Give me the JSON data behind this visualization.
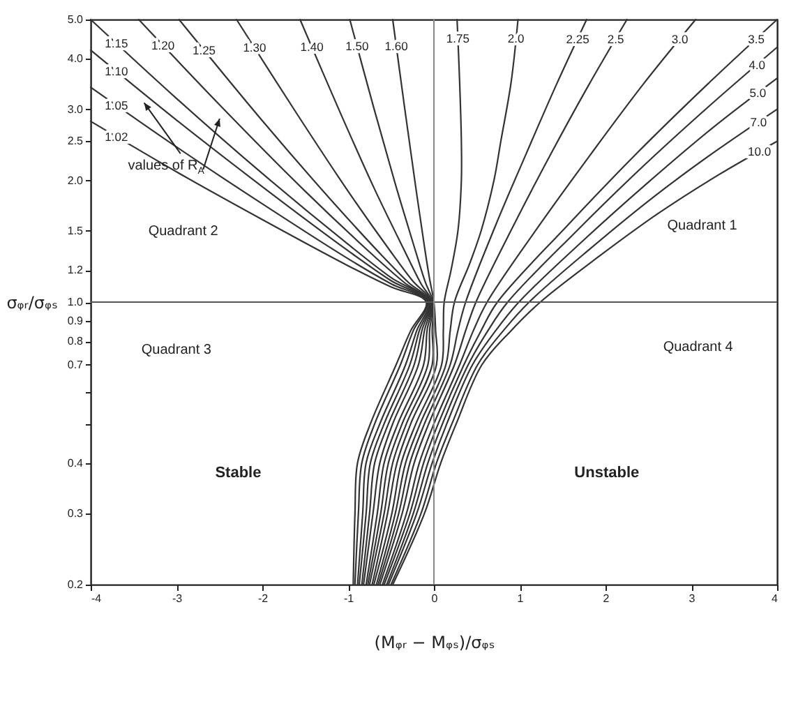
{
  "chart_data": {
    "type": "line",
    "xlabel": "(Mᵩᵣ − Mᵩₛ)/σᵩₛ",
    "ylabel": "σᵩᵣ/σᵩₛ",
    "log": "y",
    "xlim": [
      -4,
      4
    ],
    "xticks": [
      -4,
      -3,
      -2,
      -1,
      0,
      1,
      2,
      3,
      4
    ],
    "ylim": [
      0.2,
      5
    ],
    "yticks": [
      0.2,
      0.3,
      0.4,
      {
        "value": 0.5,
        "label": null
      },
      {
        "value": 0.6,
        "label": null
      },
      0.7,
      0.8,
      0.9,
      {
        "value": 1,
        "label": "1.0"
      },
      1.2,
      1.5,
      {
        "value": 2,
        "label": "2.0"
      },
      2.5,
      {
        "value": 3,
        "label": "3.0"
      },
      {
        "value": 4,
        "label": "4.0"
      },
      {
        "value": 5,
        "label": "5.0"
      }
    ],
    "grid": false,
    "legend": false,
    "marker": "none",
    "line_style": "solid",
    "ref_lines": [
      {
        "axis": "y",
        "value": 1,
        "color": "#555555"
      },
      {
        "axis": "x",
        "value": 0,
        "color": "#888888"
      }
    ],
    "annotations": [
      "Quadrant 2",
      "Quadrant 1",
      "Quadrant 3",
      "Quadrant 4",
      "Stable",
      "Unstable",
      "values of R$_{A}$"
    ],
    "series": [
      {
        "name": "1.02",
        "color": "#333333",
        "x": [
          -4,
          -3,
          -2,
          -1,
          -0.5,
          -0.09,
          -0.27,
          -0.44,
          -0.74,
          -0.89,
          -0.92,
          -0.94
        ],
        "values": [
          2.8,
          2.1,
          1.6,
          1.23,
          1.09,
          1,
          0.85,
          0.7,
          0.5,
          0.4,
          0.3,
          0.2
        ]
      },
      {
        "name": "1.05",
        "color": "#333333",
        "x": [
          -4,
          -3,
          -2,
          -1,
          -0.5,
          -0.08,
          -0.24,
          -0.39,
          -0.69,
          -0.84,
          -0.88,
          -0.92
        ],
        "values": [
          3.4,
          2.42,
          1.75,
          1.28,
          1.11,
          1,
          0.85,
          0.7,
          0.5,
          0.4,
          0.3,
          0.2
        ]
      },
      {
        "name": "1.10",
        "color": "#333333",
        "x": [
          -4,
          -3,
          -2,
          -1,
          -0.5,
          -0.07,
          -0.2,
          -0.33,
          -0.63,
          -0.79,
          -0.83,
          -0.89
        ],
        "values": [
          4.2,
          2.82,
          1.93,
          1.34,
          1.13,
          1,
          0.85,
          0.7,
          0.5,
          0.4,
          0.3,
          0.2
        ]
      },
      {
        "name": "1.15",
        "color": "#333333",
        "x": [
          -4,
          -3,
          -2,
          -1,
          -0.5,
          -0.06,
          -0.17,
          -0.28,
          -0.58,
          -0.74,
          -0.79,
          -0.87
        ],
        "values": [
          5,
          3.19,
          2.08,
          1.39,
          1.15,
          1,
          0.85,
          0.7,
          0.5,
          0.4,
          0.3,
          0.2
        ]
      },
      {
        "name": "1.20",
        "color": "#333333",
        "x": [
          -3.44,
          -2.5,
          -1.5,
          -0.75,
          -0.35,
          -0.05,
          -0.14,
          -0.23,
          -0.53,
          -0.69,
          -0.75,
          -0.84
        ],
        "values": [
          5,
          3.08,
          1.88,
          1.33,
          1.12,
          1,
          0.85,
          0.7,
          0.5,
          0.4,
          0.3,
          0.2
        ]
      },
      {
        "name": "1.25",
        "color": "#333333",
        "x": [
          -2.97,
          -2,
          -1.2,
          -0.6,
          -0.3,
          -0.04,
          -0.11,
          -0.18,
          -0.48,
          -0.63,
          -0.71,
          -0.82
        ],
        "values": [
          5,
          2.81,
          1.79,
          1.3,
          1.12,
          1,
          0.85,
          0.7,
          0.5,
          0.4,
          0.3,
          0.2
        ]
      },
      {
        "name": "1.30",
        "color": "#333333",
        "x": [
          -2.3,
          -1.6,
          -1,
          -0.5,
          -0.25,
          -0.03,
          -0.08,
          -0.12,
          -0.42,
          -0.58,
          -0.66,
          -0.79
        ],
        "values": [
          5,
          2.93,
          1.88,
          1.33,
          1.13,
          1,
          0.85,
          0.7,
          0.5,
          0.4,
          0.3,
          0.2
        ]
      },
      {
        "name": "1.40",
        "color": "#333333",
        "x": [
          -1.56,
          -1.1,
          -0.7,
          -0.35,
          -0.15,
          -0.02,
          -0.05,
          -0.07,
          -0.37,
          -0.53,
          -0.62,
          -0.77
        ],
        "values": [
          5,
          2.97,
          1.92,
          1.35,
          1.11,
          1,
          0.85,
          0.7,
          0.5,
          0.4,
          0.3,
          0.2
        ]
      },
      {
        "name": "1.50",
        "color": "#333333",
        "x": [
          -0.98,
          -0.7,
          -0.45,
          -0.22,
          -0.1,
          -0.01,
          -0.02,
          -0.02,
          -0.32,
          -0.48,
          -0.58,
          -0.75
        ],
        "values": [
          5,
          3.02,
          1.96,
          1.35,
          1.12,
          1,
          0.85,
          0.7,
          0.5,
          0.4,
          0.3,
          0.2
        ]
      },
      {
        "name": "1.60",
        "color": "#333333",
        "x": [
          -0.48,
          -0.34,
          -0.22,
          -0.11,
          -0.05,
          0,
          0.02,
          0.03,
          -0.27,
          -0.43,
          -0.54,
          -0.72
        ],
        "values": [
          5,
          3.01,
          1.98,
          1.37,
          1.14,
          1,
          0.85,
          0.7,
          0.5,
          0.4,
          0.3,
          0.2
        ]
      },
      {
        "name": "1.75",
        "color": "#333333",
        "x": [
          0.27,
          0.3,
          0.32,
          0.32,
          0.28,
          0.2,
          0.12,
          0.11,
          0.09,
          -0.21,
          -0.38,
          -0.49,
          -0.7
        ],
        "values": [
          5,
          3.5,
          2.5,
          2,
          1.5,
          1.2,
          1,
          0.85,
          0.7,
          0.5,
          0.4,
          0.3,
          0.2
        ]
      },
      {
        "name": "2.0",
        "color": "#333333",
        "x": [
          0.98,
          0.9,
          0.78,
          0.7,
          0.55,
          0.42,
          0.24,
          0.19,
          0.14,
          -0.16,
          -0.33,
          -0.45,
          -0.67
        ],
        "values": [
          5,
          3.5,
          2.5,
          2,
          1.5,
          1.25,
          1,
          0.85,
          0.7,
          0.5,
          0.4,
          0.3,
          0.2
        ]
      },
      {
        "name": "2.25",
        "color": "#333333",
        "x": [
          1.78,
          1.43,
          1.08,
          0.72,
          0.37,
          0.28,
          0.19,
          -0.11,
          -0.28,
          -0.41,
          -0.65
        ],
        "values": [
          5,
          3.46,
          2.34,
          1.55,
          1,
          0.85,
          0.7,
          0.5,
          0.4,
          0.3,
          0.2
        ]
      },
      {
        "name": "2.5",
        "color": "#333333",
        "x": [
          2.25,
          1.81,
          1.37,
          0.93,
          0.49,
          0.37,
          0.24,
          -0.06,
          -0.23,
          -0.37,
          -0.63
        ],
        "values": [
          5,
          3.46,
          2.34,
          1.55,
          1,
          0.85,
          0.7,
          0.5,
          0.4,
          0.3,
          0.2
        ]
      },
      {
        "name": "3.0",
        "color": "#333333",
        "x": [
          3.05,
          2.44,
          1.84,
          1.23,
          0.62,
          0.46,
          0.3,
          0,
          -0.17,
          -0.32,
          -0.6
        ],
        "values": [
          5,
          3.46,
          2.34,
          1.55,
          1,
          0.85,
          0.7,
          0.5,
          0.4,
          0.3,
          0.2
        ]
      },
      {
        "name": "3.5",
        "color": "#333333",
        "x": [
          4,
          3.19,
          2.37,
          1.56,
          0.74,
          0.55,
          0.35,
          0.05,
          -0.12,
          -0.28,
          -0.58
        ],
        "values": [
          5,
          3.46,
          2.34,
          1.55,
          1,
          0.85,
          0.7,
          0.5,
          0.4,
          0.3,
          0.2
        ]
      },
      {
        "name": "4.0",
        "color": "#333333",
        "x": [
          4,
          3.22,
          2.43,
          1.65,
          0.86,
          0.63,
          0.4,
          0.1,
          -0.07,
          -0.24,
          -0.55
        ],
        "values": [
          4.27,
          3.07,
          2.16,
          1.49,
          1,
          0.85,
          0.7,
          0.5,
          0.4,
          0.3,
          0.2
        ]
      },
      {
        "name": "5.0",
        "color": "#333333",
        "x": [
          4,
          3.25,
          2.5,
          1.74,
          0.99,
          0.72,
          0.45,
          0.15,
          -0.02,
          -0.2,
          -0.53
        ],
        "values": [
          3.58,
          2.7,
          1.98,
          1.42,
          1,
          0.85,
          0.7,
          0.5,
          0.4,
          0.3,
          0.2
        ]
      },
      {
        "name": "7.0",
        "color": "#333333",
        "x": [
          4,
          3.28,
          2.56,
          1.83,
          1.11,
          0.81,
          0.51,
          0.21,
          0.03,
          -0.15,
          -0.5
        ],
        "values": [
          3,
          2.36,
          1.82,
          1.36,
          1,
          0.85,
          0.7,
          0.5,
          0.4,
          0.3,
          0.2
        ]
      },
      {
        "name": "10.0",
        "color": "#333333",
        "x": [
          4,
          3.31,
          2.62,
          1.93,
          1.24,
          0.9,
          0.56,
          0.26,
          0.08,
          -0.11,
          -0.48
        ],
        "values": [
          2.5,
          2.06,
          1.66,
          1.3,
          1,
          0.85,
          0.7,
          0.5,
          0.4,
          0.3,
          0.2
        ]
      }
    ]
  }
}
